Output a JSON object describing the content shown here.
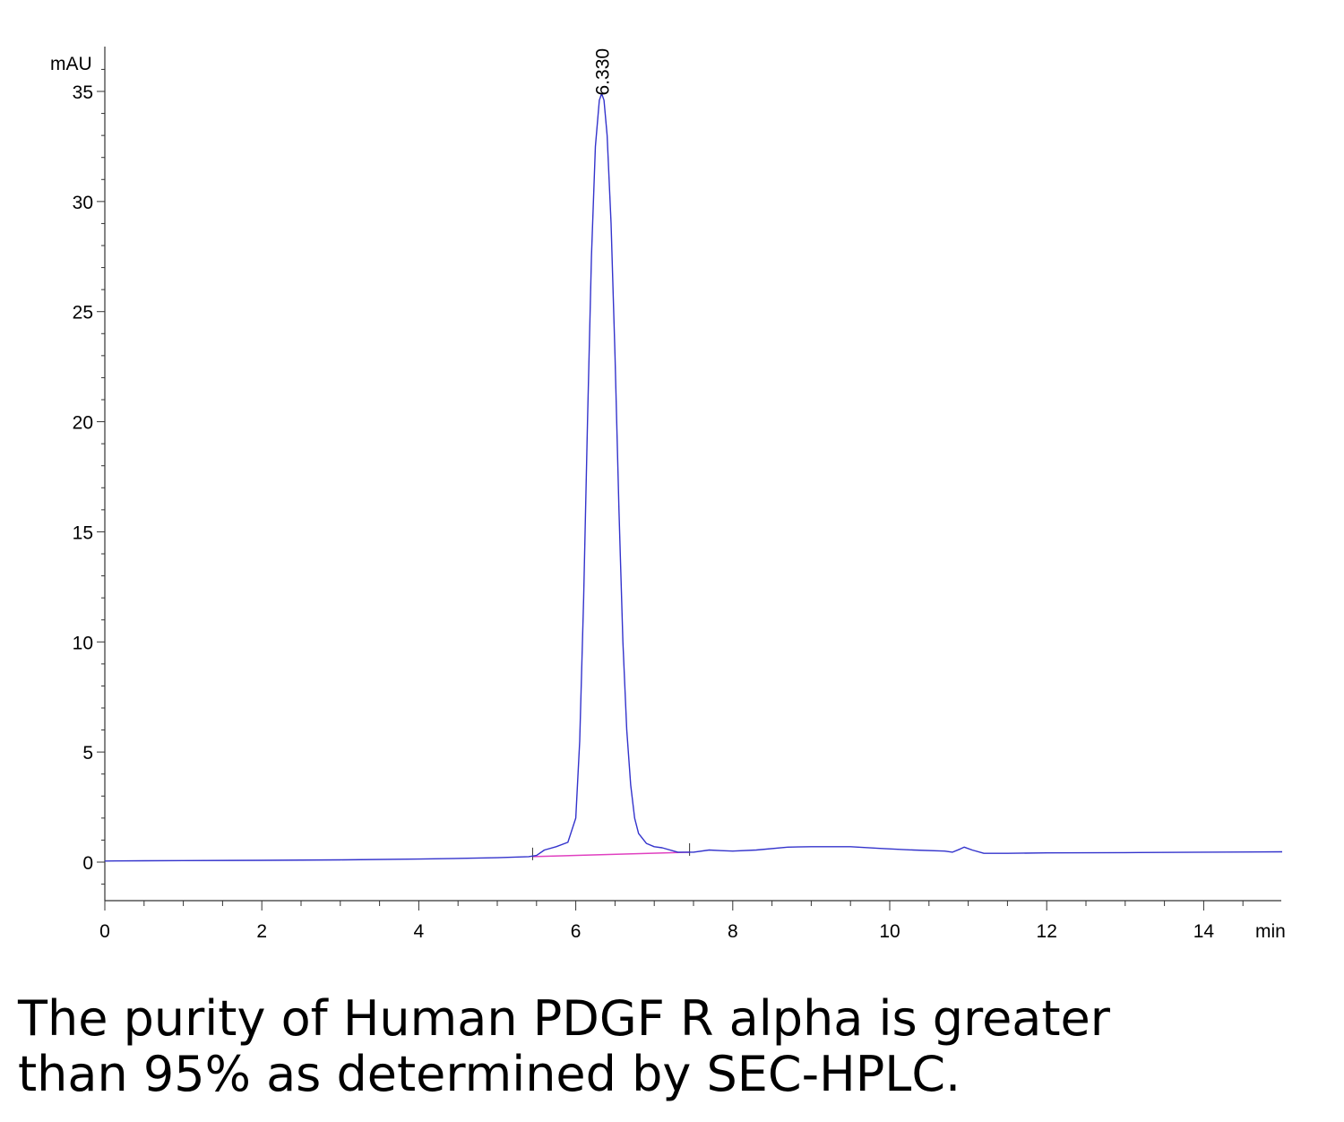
{
  "chart_data": {
    "type": "line",
    "title": "",
    "xlabel": "min",
    "ylabel": "mAU",
    "xlim": [
      0,
      15
    ],
    "ylim": [
      -1.8,
      36.5
    ],
    "x_ticks": [
      0,
      2,
      4,
      6,
      8,
      10,
      12,
      14
    ],
    "y_ticks": [
      0,
      5,
      10,
      15,
      20,
      25,
      30,
      35
    ],
    "grid": false,
    "line_color": "#3333cc",
    "baseline_color": "#e040c0",
    "peak_annotation": {
      "x": 6.33,
      "y": 34.9,
      "label": "6.330"
    },
    "baseline": {
      "x": [
        5.45,
        7.45
      ],
      "y": [
        0.25,
        0.45
      ]
    },
    "integration_marks": [
      5.45,
      7.45
    ],
    "series": [
      {
        "x": [
          0,
          0.5,
          1,
          2,
          3,
          4,
          5,
          5.4,
          5.5,
          5.6,
          5.75,
          5.9,
          6.0,
          6.05,
          6.1,
          6.15,
          6.2,
          6.25,
          6.3,
          6.33,
          6.36,
          6.4,
          6.45,
          6.5,
          6.55,
          6.6,
          6.65,
          6.7,
          6.75,
          6.8,
          6.9,
          7.0,
          7.1,
          7.3,
          7.5,
          7.7,
          7.85,
          8.0,
          8.3,
          8.7,
          9.0,
          9.5,
          9.9,
          10.3,
          10.7,
          10.8,
          10.9,
          10.95,
          11.05,
          11.2,
          11.5,
          12.0,
          13.0,
          14.0,
          15.0
        ],
        "y": [
          0.05,
          0.06,
          0.07,
          0.08,
          0.1,
          0.14,
          0.2,
          0.25,
          0.3,
          0.55,
          0.7,
          0.9,
          2.0,
          5.5,
          12.0,
          20.0,
          27.5,
          32.5,
          34.6,
          34.9,
          34.6,
          33.0,
          29.0,
          23.0,
          16.0,
          10.0,
          6.0,
          3.5,
          2.0,
          1.3,
          0.85,
          0.7,
          0.65,
          0.45,
          0.45,
          0.55,
          0.52,
          0.5,
          0.55,
          0.68,
          0.7,
          0.7,
          0.62,
          0.55,
          0.5,
          0.45,
          0.6,
          0.68,
          0.55,
          0.4,
          0.4,
          0.42,
          0.43,
          0.45,
          0.47
        ]
      }
    ]
  },
  "caption": {
    "line1": "The purity of Human PDGF R alpha is greater",
    "line2": "than 95% as determined by SEC-HPLC."
  }
}
